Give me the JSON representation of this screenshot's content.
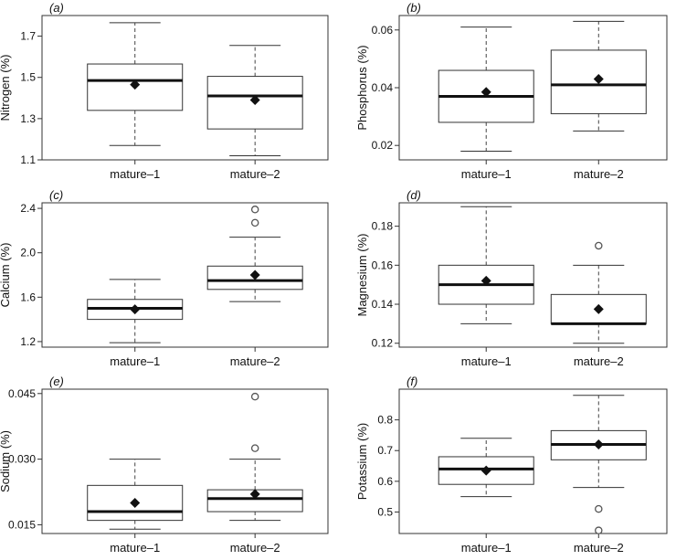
{
  "chart_data": [
    {
      "type": "box",
      "panel_label": "(a)",
      "ylabel": "Nitrogen (%)",
      "ylim": [
        1.1,
        1.8
      ],
      "yticks": [
        1.1,
        1.3,
        1.5,
        1.7
      ],
      "ytick_labels": [
        "1.1",
        "1.3",
        "1.5",
        "1.7"
      ],
      "categories": [
        "mature–1",
        "mature–2"
      ],
      "boxes": [
        {
          "whisker_low": 1.17,
          "q1": 1.34,
          "median": 1.485,
          "q3": 1.565,
          "whisker_high": 1.765,
          "mean": 1.465,
          "outliers": []
        },
        {
          "whisker_low": 1.12,
          "q1": 1.25,
          "median": 1.41,
          "q3": 1.505,
          "whisker_high": 1.655,
          "mean": 1.39,
          "outliers": []
        }
      ]
    },
    {
      "type": "box",
      "panel_label": "(b)",
      "ylabel": "Phosphorus (%)",
      "ylim": [
        0.015,
        0.065
      ],
      "yticks": [
        0.02,
        0.04,
        0.06
      ],
      "ytick_labels": [
        "0.02",
        "0.04",
        "0.06"
      ],
      "categories": [
        "mature–1",
        "mature–2"
      ],
      "boxes": [
        {
          "whisker_low": 0.018,
          "q1": 0.028,
          "median": 0.037,
          "q3": 0.046,
          "whisker_high": 0.061,
          "mean": 0.0385,
          "outliers": []
        },
        {
          "whisker_low": 0.025,
          "q1": 0.031,
          "median": 0.041,
          "q3": 0.053,
          "whisker_high": 0.063,
          "mean": 0.043,
          "outliers": []
        }
      ]
    },
    {
      "type": "box",
      "panel_label": "(c)",
      "ylabel": "Calcium (%)",
      "ylim": [
        1.15,
        2.45
      ],
      "yticks": [
        1.2,
        1.6,
        2.0,
        2.4
      ],
      "ytick_labels": [
        "1.2",
        "1.6",
        "2.0",
        "2.4"
      ],
      "categories": [
        "mature–1",
        "mature–2"
      ],
      "boxes": [
        {
          "whisker_low": 1.19,
          "q1": 1.4,
          "median": 1.5,
          "q3": 1.58,
          "whisker_high": 1.76,
          "mean": 1.49,
          "outliers": []
        },
        {
          "whisker_low": 1.56,
          "q1": 1.67,
          "median": 1.75,
          "q3": 1.88,
          "whisker_high": 2.14,
          "mean": 1.8,
          "outliers": [
            2.27,
            2.39
          ]
        }
      ]
    },
    {
      "type": "box",
      "panel_label": "(d)",
      "ylabel": "Magnesium (%)",
      "ylim": [
        0.118,
        0.192
      ],
      "yticks": [
        0.12,
        0.14,
        0.16,
        0.18
      ],
      "ytick_labels": [
        "0.12",
        "0.14",
        "0.16",
        "0.18"
      ],
      "categories": [
        "mature–1",
        "mature–2"
      ],
      "boxes": [
        {
          "whisker_low": 0.13,
          "q1": 0.14,
          "median": 0.15,
          "q3": 0.16,
          "whisker_high": 0.19,
          "mean": 0.152,
          "outliers": []
        },
        {
          "whisker_low": 0.12,
          "q1": 0.13,
          "median": 0.13,
          "q3": 0.145,
          "whisker_high": 0.16,
          "mean": 0.1375,
          "outliers": [
            0.17
          ]
        }
      ]
    },
    {
      "type": "box",
      "panel_label": "(e)",
      "ylabel": "Sodium (%)",
      "ylim": [
        0.013,
        0.046
      ],
      "yticks": [
        0.015,
        0.03,
        0.045
      ],
      "ytick_labels": [
        "0.015",
        "0.030",
        "0.045"
      ],
      "categories": [
        "mature–1",
        "mature–2"
      ],
      "boxes": [
        {
          "whisker_low": 0.014,
          "q1": 0.016,
          "median": 0.018,
          "q3": 0.024,
          "whisker_high": 0.03,
          "mean": 0.02,
          "outliers": []
        },
        {
          "whisker_low": 0.016,
          "q1": 0.018,
          "median": 0.021,
          "q3": 0.023,
          "whisker_high": 0.03,
          "mean": 0.022,
          "outliers": [
            0.0325,
            0.0443
          ]
        }
      ]
    },
    {
      "type": "box",
      "panel_label": "(f)",
      "ylabel": "Potassium (%)",
      "ylim": [
        0.43,
        0.9
      ],
      "yticks": [
        0.5,
        0.6,
        0.7,
        0.8
      ],
      "ytick_labels": [
        "0.5",
        "0.6",
        "0.7",
        "0.8"
      ],
      "categories": [
        "mature–1",
        "mature–2"
      ],
      "boxes": [
        {
          "whisker_low": 0.55,
          "q1": 0.59,
          "median": 0.64,
          "q3": 0.68,
          "whisker_high": 0.74,
          "mean": 0.635,
          "outliers": []
        },
        {
          "whisker_low": 0.58,
          "q1": 0.67,
          "median": 0.72,
          "q3": 0.765,
          "whisker_high": 0.88,
          "mean": 0.72,
          "outliers": [
            0.51,
            0.44
          ]
        }
      ]
    }
  ]
}
